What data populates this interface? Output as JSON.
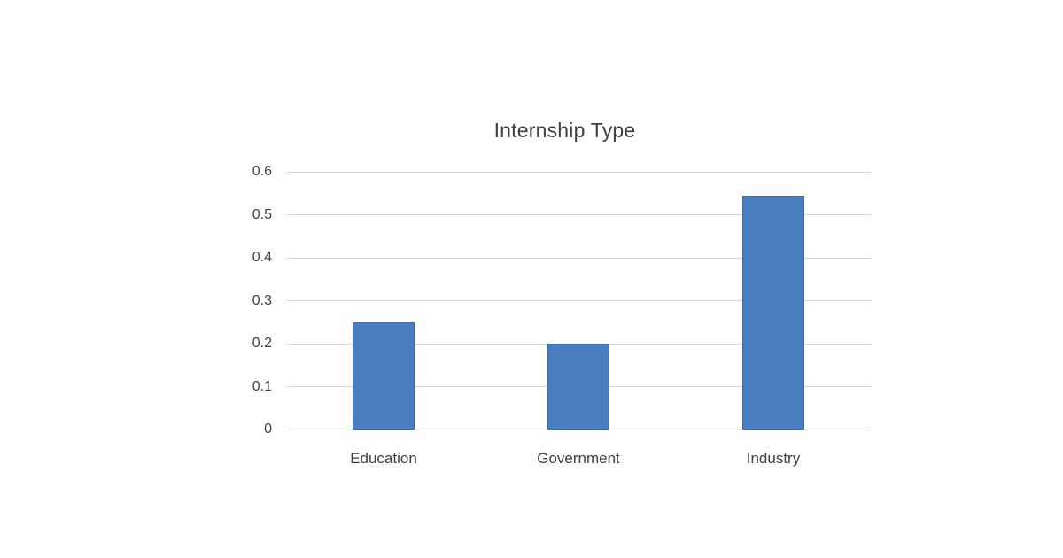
{
  "chart_data": {
    "type": "bar",
    "title": "Internship Type",
    "categories": [
      "Education",
      "Government",
      "Industry"
    ],
    "values": [
      0.25,
      0.2,
      0.545
    ],
    "xlabel": "",
    "ylabel": "",
    "ylim": [
      0,
      0.6
    ],
    "yticks": [
      0,
      0.1,
      0.2,
      0.3,
      0.4,
      0.5,
      0.6
    ],
    "ytick_labels": [
      "0",
      "0.1",
      "0.2",
      "0.3",
      "0.4",
      "0.5",
      "0.6"
    ],
    "grid": true,
    "legend": false,
    "colors": {
      "bar_fill": "#4a7dbd",
      "bar_border": "#3a6cac",
      "gridline": "#d6d6d6",
      "text": "#404040",
      "background": "#ffffff"
    }
  }
}
